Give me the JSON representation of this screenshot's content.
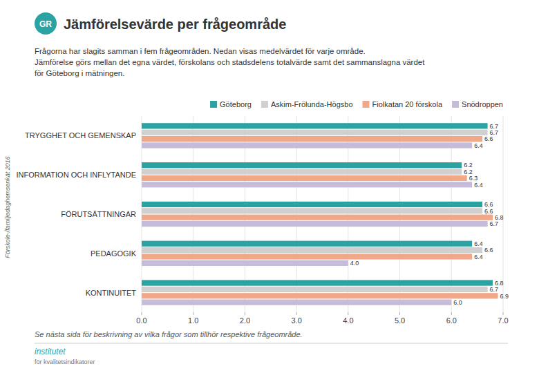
{
  "chart_data": {
    "type": "bar",
    "orientation": "horizontal",
    "title": "Jämförelsevärde per frågeområde",
    "subtitle": [
      "Frågorna har slagits samman i fem frågeområden. Nedan visas medelvärdet för varje område.",
      "Jämförelse görs mellan det egna värdet, förskolans och stadsdelens totalvärde samt det sammanslagna värdet",
      "för Göteborg i mätningen."
    ],
    "annotations": [
      "Förskole-/familjedaghemsenkät 2016",
      "GR",
      "Se nästa sida för beskrivning av vilka frågor som tillhör respektive frågeområde.",
      "institutet",
      "för kvalitetsindikatorer"
    ],
    "categories": [
      "TRYGGHET OCH GEMENSKAP",
      "INFORMATION OCH INFLYTANDE",
      "FÖRUTSÄTTNINGAR",
      "PEDAGOGIK",
      "KONTINUITET"
    ],
    "series": [
      {
        "name": "Göteborg",
        "color": "#2ba3a3",
        "values": [
          6.7,
          6.2,
          6.6,
          6.4,
          6.8
        ],
        "value_labels": [
          "6.7",
          "6.2",
          "6.6",
          "6.4",
          "6.8"
        ]
      },
      {
        "name": "Askim-Frölunda-Högsbo",
        "color": "#d0d0d0",
        "values": [
          6.7,
          6.2,
          6.6,
          6.6,
          6.7
        ],
        "value_labels": [
          "6.7",
          "6.2",
          "6.6",
          "6.6",
          "6.7"
        ]
      },
      {
        "name": "Fiolkatan 20 förskola",
        "color": "#f0a888",
        "values": [
          6.6,
          6.3,
          6.8,
          6.4,
          6.9
        ],
        "value_labels": [
          "6.6",
          "6.3",
          "6.8",
          "6.4",
          "6.9"
        ]
      },
      {
        "name": "Snödroppen",
        "color": "#c4bcd8",
        "values": [
          6.4,
          6.4,
          6.7,
          4.0,
          6.0
        ],
        "value_labels": [
          "6.4",
          "6.4",
          "6.7",
          "4.0",
          "6.0"
        ]
      }
    ],
    "xlim": [
      0.0,
      7.0
    ],
    "xticks": [
      {
        "value": 0,
        "label": "0.0"
      },
      {
        "value": 1,
        "label": "1.0"
      },
      {
        "value": 2,
        "label": "2.0"
      },
      {
        "value": 3,
        "label": "3.0"
      },
      {
        "value": 4,
        "label": "4.0"
      },
      {
        "value": 5,
        "label": "5.0"
      },
      {
        "value": 6,
        "label": "6.0"
      },
      {
        "value": 7,
        "label": "7.0"
      }
    ],
    "grid": true,
    "legend": "upper right",
    "data_labels": true
  }
}
